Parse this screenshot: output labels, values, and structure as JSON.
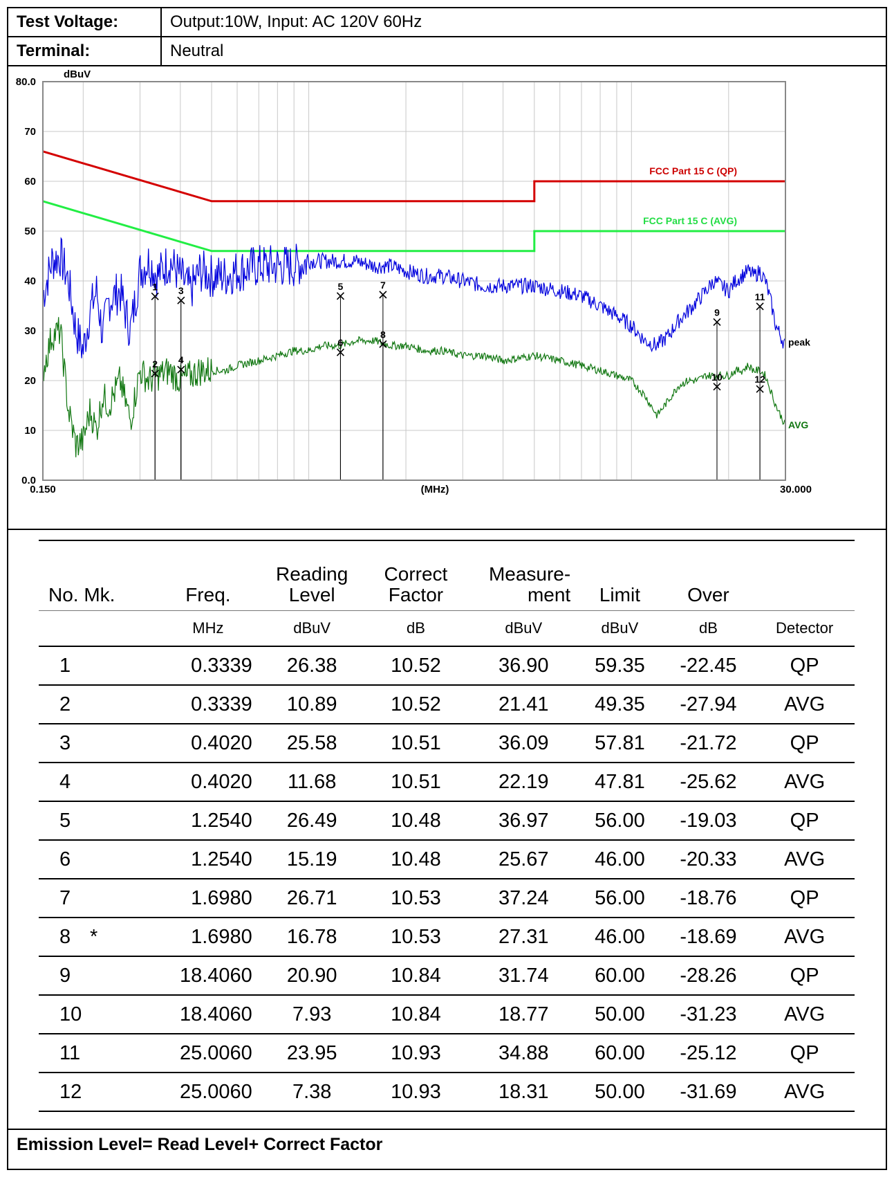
{
  "header": {
    "voltage_label": "Test Voltage:",
    "voltage_value": "Output:10W, Input: AC 120V 60Hz",
    "terminal_label": "Terminal:",
    "terminal_value": "Neutral"
  },
  "chart_data": {
    "type": "line",
    "ylabel": "dBuV",
    "xlabel": "(MHz)",
    "xscale": "log",
    "xlim": [
      0.15,
      30.0
    ],
    "ylim": [
      0,
      80
    ],
    "y_ticks": [
      "0.0",
      "10",
      "20",
      "30",
      "40",
      "50",
      "60",
      "70",
      "80.0"
    ],
    "x_tick_labels": [
      "0.150",
      "30.000"
    ],
    "grid": true,
    "limit_lines": [
      {
        "name": "FCC  Part 15 C (QP)",
        "color": "#d40000",
        "points": [
          [
            0.15,
            66
          ],
          [
            0.5,
            56
          ],
          [
            5.0,
            56
          ],
          [
            5.0,
            60
          ],
          [
            30.0,
            60
          ]
        ]
      },
      {
        "name": "FCC  Part 15 C (AVG)",
        "color": "#22ee44",
        "points": [
          [
            0.15,
            56
          ],
          [
            0.5,
            46
          ],
          [
            5.0,
            46
          ],
          [
            5.0,
            50
          ],
          [
            30.0,
            50
          ]
        ]
      }
    ],
    "series": [
      {
        "name": "peak",
        "color": "#0000dd",
        "x": [
          0.15,
          0.16,
          0.17,
          0.18,
          0.19,
          0.2,
          0.21,
          0.22,
          0.23,
          0.24,
          0.26,
          0.28,
          0.3,
          0.32,
          0.34,
          0.37,
          0.4,
          0.43,
          0.46,
          0.5,
          0.55,
          0.6,
          0.7,
          0.8,
          0.9,
          1.0,
          1.1,
          1.25,
          1.4,
          1.6,
          1.8,
          2.0,
          2.3,
          2.6,
          3.0,
          3.5,
          4.0,
          5.0,
          6.0,
          7.0,
          8.0,
          9.0,
          10.0,
          11.0,
          12.0,
          13.0,
          14.0,
          15.0,
          16.0,
          17.0,
          18.0,
          19.0,
          20.0,
          21.0,
          22.0,
          23.0,
          24.0,
          25.0,
          26.0,
          27.0,
          28.0,
          30.0
        ],
        "values": [
          37,
          44,
          45,
          40,
          30,
          26,
          34,
          38,
          29,
          36,
          38,
          30,
          42,
          44,
          41,
          44,
          41,
          38,
          42,
          41,
          41,
          42,
          43,
          43,
          43,
          44,
          44,
          44,
          44,
          43,
          43,
          42,
          41,
          41,
          40,
          39,
          39,
          39,
          38,
          37,
          35,
          33,
          31,
          28,
          27,
          29,
          32,
          34,
          36,
          38,
          40,
          39,
          38,
          40,
          41,
          42,
          41,
          42,
          40,
          36,
          31,
          27
        ]
      },
      {
        "name": "AVG",
        "color": "#117711",
        "x": [
          0.15,
          0.16,
          0.17,
          0.18,
          0.19,
          0.2,
          0.21,
          0.22,
          0.23,
          0.24,
          0.26,
          0.28,
          0.3,
          0.32,
          0.34,
          0.37,
          0.4,
          0.43,
          0.46,
          0.5,
          0.55,
          0.6,
          0.7,
          0.8,
          0.9,
          1.0,
          1.1,
          1.25,
          1.4,
          1.6,
          1.8,
          2.0,
          2.3,
          2.6,
          3.0,
          3.5,
          4.0,
          5.0,
          6.0,
          7.0,
          8.0,
          9.0,
          10.0,
          11.0,
          12.0,
          13.0,
          14.0,
          15.0,
          16.0,
          17.0,
          18.0,
          19.0,
          20.0,
          21.0,
          22.0,
          23.0,
          24.0,
          25.0,
          26.0,
          27.0,
          28.0,
          30.0
        ],
        "values": [
          22,
          29,
          30,
          14,
          7,
          8,
          14,
          10,
          17,
          15,
          20,
          12,
          22,
          20,
          21,
          22,
          20,
          21,
          22,
          22,
          22,
          23,
          24,
          25,
          26,
          26,
          27,
          27,
          28,
          28,
          27,
          27,
          26,
          26,
          25,
          25,
          24,
          25,
          24,
          23,
          22,
          21,
          20,
          17,
          13,
          16,
          19,
          20,
          20,
          21,
          21,
          21,
          21,
          22,
          22,
          23,
          22,
          22,
          21,
          18,
          15,
          11
        ]
      }
    ],
    "markers": [
      {
        "no": "1",
        "freq": 0.3339,
        "level": 36.9
      },
      {
        "no": "2",
        "freq": 0.3339,
        "level": 21.41
      },
      {
        "no": "3",
        "freq": 0.402,
        "level": 36.09
      },
      {
        "no": "4",
        "freq": 0.402,
        "level": 22.19
      },
      {
        "no": "5",
        "freq": 1.254,
        "level": 36.97
      },
      {
        "no": "6",
        "freq": 1.254,
        "level": 25.67
      },
      {
        "no": "7",
        "freq": 1.698,
        "level": 37.24
      },
      {
        "no": "8",
        "freq": 1.698,
        "level": 27.31
      },
      {
        "no": "9",
        "freq": 18.406,
        "level": 31.74
      },
      {
        "no": "10",
        "freq": 18.406,
        "level": 18.77
      },
      {
        "no": "11",
        "freq": 25.006,
        "level": 34.88
      },
      {
        "no": "12",
        "freq": 25.006,
        "level": 18.31
      }
    ]
  },
  "table": {
    "headers": {
      "no_mk": "No.  Mk.",
      "freq": "Freq.",
      "reading_1": "Reading",
      "reading_2": "Level",
      "correct_1": "Correct",
      "correct_2": "Factor",
      "measure_1": "Measure-",
      "measure_2": "ment",
      "limit": "Limit",
      "over": "Over"
    },
    "units": {
      "freq": "MHz",
      "reading": "dBuV",
      "correct": "dB",
      "measure": "dBuV",
      "limit": "dBuV",
      "over": "dB",
      "detector": "Detector"
    },
    "rows": [
      {
        "no": "1",
        "mk": "",
        "freq": "0.3339",
        "reading": "26.38",
        "correct": "10.52",
        "measure": "36.90",
        "limit": "59.35",
        "over": "-22.45",
        "detector": "QP"
      },
      {
        "no": "2",
        "mk": "",
        "freq": "0.3339",
        "reading": "10.89",
        "correct": "10.52",
        "measure": "21.41",
        "limit": "49.35",
        "over": "-27.94",
        "detector": "AVG"
      },
      {
        "no": "3",
        "mk": "",
        "freq": "0.4020",
        "reading": "25.58",
        "correct": "10.51",
        "measure": "36.09",
        "limit": "57.81",
        "over": "-21.72",
        "detector": "QP"
      },
      {
        "no": "4",
        "mk": "",
        "freq": "0.4020",
        "reading": "11.68",
        "correct": "10.51",
        "measure": "22.19",
        "limit": "47.81",
        "over": "-25.62",
        "detector": "AVG"
      },
      {
        "no": "5",
        "mk": "",
        "freq": "1.2540",
        "reading": "26.49",
        "correct": "10.48",
        "measure": "36.97",
        "limit": "56.00",
        "over": "-19.03",
        "detector": "QP"
      },
      {
        "no": "6",
        "mk": "",
        "freq": "1.2540",
        "reading": "15.19",
        "correct": "10.48",
        "measure": "25.67",
        "limit": "46.00",
        "over": "-20.33",
        "detector": "AVG"
      },
      {
        "no": "7",
        "mk": "",
        "freq": "1.6980",
        "reading": "26.71",
        "correct": "10.53",
        "measure": "37.24",
        "limit": "56.00",
        "over": "-18.76",
        "detector": "QP"
      },
      {
        "no": "8",
        "mk": "*",
        "freq": "1.6980",
        "reading": "16.78",
        "correct": "10.53",
        "measure": "27.31",
        "limit": "46.00",
        "over": "-18.69",
        "detector": "AVG"
      },
      {
        "no": "9",
        "mk": "",
        "freq": "18.4060",
        "reading": "20.90",
        "correct": "10.84",
        "measure": "31.74",
        "limit": "60.00",
        "over": "-28.26",
        "detector": "QP"
      },
      {
        "no": "10",
        "mk": "",
        "freq": "18.4060",
        "reading": "7.93",
        "correct": "10.84",
        "measure": "18.77",
        "limit": "50.00",
        "over": "-31.23",
        "detector": "AVG"
      },
      {
        "no": "11",
        "mk": "",
        "freq": "25.0060",
        "reading": "23.95",
        "correct": "10.93",
        "measure": "34.88",
        "limit": "60.00",
        "over": "-25.12",
        "detector": "QP"
      },
      {
        "no": "12",
        "mk": "",
        "freq": "25.0060",
        "reading": "7.38",
        "correct": "10.93",
        "measure": "18.31",
        "limit": "50.00",
        "over": "-31.69",
        "detector": "AVG"
      }
    ]
  },
  "footer": "Emission Level= Read Level+ Correct Factor"
}
